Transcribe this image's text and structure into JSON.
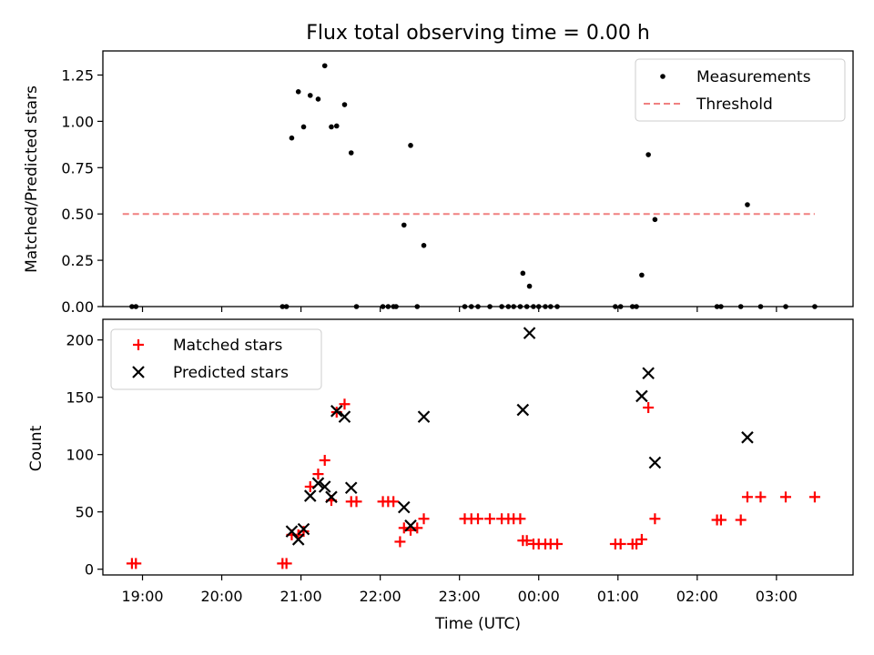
{
  "figure": {
    "title": "Flux total observing time = 0.00 h",
    "xlabel": "Time (UTC)"
  },
  "chart_data": [
    {
      "type": "scatter",
      "panel": "top",
      "ylabel": "Matched/Predicted stars",
      "xlim": [
        "18:30",
        "03:58"
      ],
      "ylim": [
        0,
        1.38
      ],
      "yticks": [
        0.0,
        0.25,
        0.5,
        0.75,
        1.0,
        1.25
      ],
      "ytick_labels": [
        "0.00",
        "0.25",
        "0.50",
        "0.75",
        "1.00",
        "1.25"
      ],
      "legend_position": "top-right",
      "grid": false,
      "series": [
        {
          "name": "Measurements",
          "style": "point",
          "color": "#000000",
          "points": [
            [
              "18:52",
              0.0
            ],
            [
              "18:55",
              0.0
            ],
            [
              "20:46",
              0.0
            ],
            [
              "20:49",
              0.0
            ],
            [
              "20:53",
              0.91
            ],
            [
              "20:58",
              1.16
            ],
            [
              "21:02",
              0.97
            ],
            [
              "21:07",
              1.14
            ],
            [
              "21:13",
              1.12
            ],
            [
              "21:18",
              1.3
            ],
            [
              "21:23",
              0.97
            ],
            [
              "21:27",
              0.975
            ],
            [
              "21:33",
              1.09
            ],
            [
              "21:38",
              0.83
            ],
            [
              "21:42",
              0.0
            ],
            [
              "22:02",
              0.0
            ],
            [
              "22:06",
              0.0
            ],
            [
              "22:10",
              0.0
            ],
            [
              "22:12",
              0.0
            ],
            [
              "22:18",
              0.44
            ],
            [
              "22:23",
              0.87
            ],
            [
              "22:28",
              0.0
            ],
            [
              "22:33",
              0.33
            ],
            [
              "23:04",
              0.0
            ],
            [
              "23:09",
              0.0
            ],
            [
              "23:14",
              0.0
            ],
            [
              "23:23",
              0.0
            ],
            [
              "23:32",
              0.0
            ],
            [
              "23:37",
              0.0
            ],
            [
              "23:41",
              0.0
            ],
            [
              "23:46",
              0.0
            ],
            [
              "23:48",
              0.18
            ],
            [
              "23:51",
              0.0
            ],
            [
              "23:53",
              0.11
            ],
            [
              "23:56",
              0.0
            ],
            [
              "00:00",
              0.0
            ],
            [
              "00:05",
              0.0
            ],
            [
              "00:09",
              0.0
            ],
            [
              "00:14",
              0.0
            ],
            [
              "00:58",
              0.0
            ],
            [
              "01:02",
              0.0
            ],
            [
              "01:11",
              0.0
            ],
            [
              "01:14",
              0.0
            ],
            [
              "01:18",
              0.17
            ],
            [
              "01:23",
              0.82
            ],
            [
              "01:28",
              0.47
            ],
            [
              "02:15",
              0.0
            ],
            [
              "02:18",
              0.0
            ],
            [
              "02:33",
              0.0
            ],
            [
              "02:38",
              0.55
            ],
            [
              "02:48",
              0.0
            ],
            [
              "03:07",
              0.0
            ],
            [
              "03:29",
              0.0
            ]
          ]
        },
        {
          "name": "Threshold",
          "style": "dashed-line",
          "color": "#f08080",
          "points": [
            [
              "18:45",
              0.5
            ],
            [
              "03:29",
              0.5
            ]
          ]
        }
      ]
    },
    {
      "type": "scatter",
      "panel": "bottom",
      "ylabel": "Count",
      "xlabel": "Time (UTC)",
      "xlim": [
        "18:30",
        "03:58"
      ],
      "ylim": [
        -5,
        218
      ],
      "yticks": [
        0,
        50,
        100,
        150,
        200
      ],
      "ytick_labels": [
        "0",
        "50",
        "100",
        "150",
        "200"
      ],
      "xticks": [
        "19:00",
        "20:00",
        "21:00",
        "22:00",
        "23:00",
        "00:00",
        "01:00",
        "02:00",
        "03:00"
      ],
      "legend_position": "top-left",
      "grid": false,
      "series": [
        {
          "name": "Matched stars",
          "marker": "plus",
          "color": "#ff0000",
          "points": [
            [
              "18:52",
              5
            ],
            [
              "18:55",
              5
            ],
            [
              "20:46",
              5
            ],
            [
              "20:49",
              5
            ],
            [
              "20:53",
              30
            ],
            [
              "20:58",
              30
            ],
            [
              "21:02",
              33
            ],
            [
              "21:07",
              72
            ],
            [
              "21:13",
              83
            ],
            [
              "21:18",
              95
            ],
            [
              "21:23",
              60
            ],
            [
              "21:27",
              137
            ],
            [
              "21:33",
              144
            ],
            [
              "21:38",
              59
            ],
            [
              "21:42",
              59
            ],
            [
              "22:02",
              59
            ],
            [
              "22:06",
              59
            ],
            [
              "22:10",
              59
            ],
            [
              "22:15",
              24
            ],
            [
              "22:18",
              36
            ],
            [
              "22:23",
              34
            ],
            [
              "22:28",
              36
            ],
            [
              "22:33",
              44
            ],
            [
              "23:04",
              44
            ],
            [
              "23:09",
              44
            ],
            [
              "23:14",
              44
            ],
            [
              "23:23",
              44
            ],
            [
              "23:32",
              44
            ],
            [
              "23:37",
              44
            ],
            [
              "23:41",
              44
            ],
            [
              "23:46",
              44
            ],
            [
              "23:48",
              25
            ],
            [
              "23:51",
              25
            ],
            [
              "23:56",
              22
            ],
            [
              "00:00",
              22
            ],
            [
              "00:05",
              22
            ],
            [
              "00:09",
              22
            ],
            [
              "00:14",
              22
            ],
            [
              "00:58",
              22
            ],
            [
              "01:02",
              22
            ],
            [
              "01:11",
              22
            ],
            [
              "01:14",
              22
            ],
            [
              "01:18",
              26
            ],
            [
              "01:23",
              141
            ],
            [
              "01:28",
              44
            ],
            [
              "02:15",
              43
            ],
            [
              "02:18",
              43
            ],
            [
              "02:33",
              43
            ],
            [
              "02:38",
              63
            ],
            [
              "02:48",
              63
            ],
            [
              "03:07",
              63
            ],
            [
              "03:29",
              63
            ]
          ]
        },
        {
          "name": "Predicted stars",
          "marker": "x",
          "color": "#000000",
          "points": [
            [
              "20:53",
              33
            ],
            [
              "20:58",
              26
            ],
            [
              "21:02",
              35
            ],
            [
              "21:07",
              64
            ],
            [
              "21:13",
              75
            ],
            [
              "21:18",
              72
            ],
            [
              "21:23",
              63
            ],
            [
              "21:27",
              138
            ],
            [
              "21:33",
              133
            ],
            [
              "21:38",
              71
            ],
            [
              "22:18",
              54
            ],
            [
              "22:23",
              38
            ],
            [
              "22:33",
              133
            ],
            [
              "23:48",
              139
            ],
            [
              "23:53",
              206
            ],
            [
              "01:18",
              151
            ],
            [
              "01:23",
              171
            ],
            [
              "01:28",
              93
            ],
            [
              "02:38",
              115
            ]
          ]
        }
      ]
    }
  ]
}
